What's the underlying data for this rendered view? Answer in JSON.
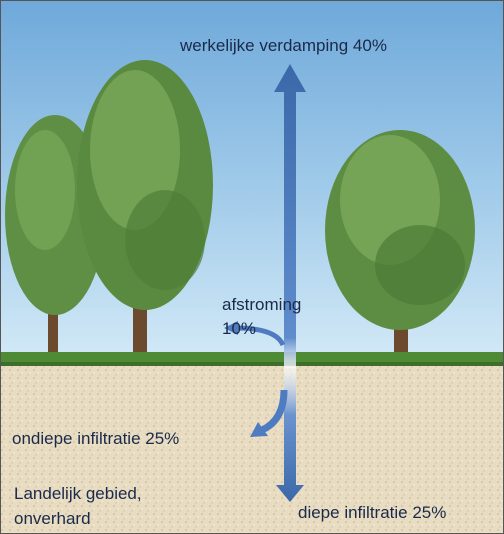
{
  "labels": {
    "evaporation": "werkelijke verdamping 40%",
    "runoff": [
      "afstroming",
      "10%"
    ],
    "shallow_infiltration": "ondiepe infiltratie 25%",
    "deep_infiltration": "diepe infiltratie 25%"
  },
  "caption": [
    "Landelijk gebied,",
    "onverhard"
  ]
}
